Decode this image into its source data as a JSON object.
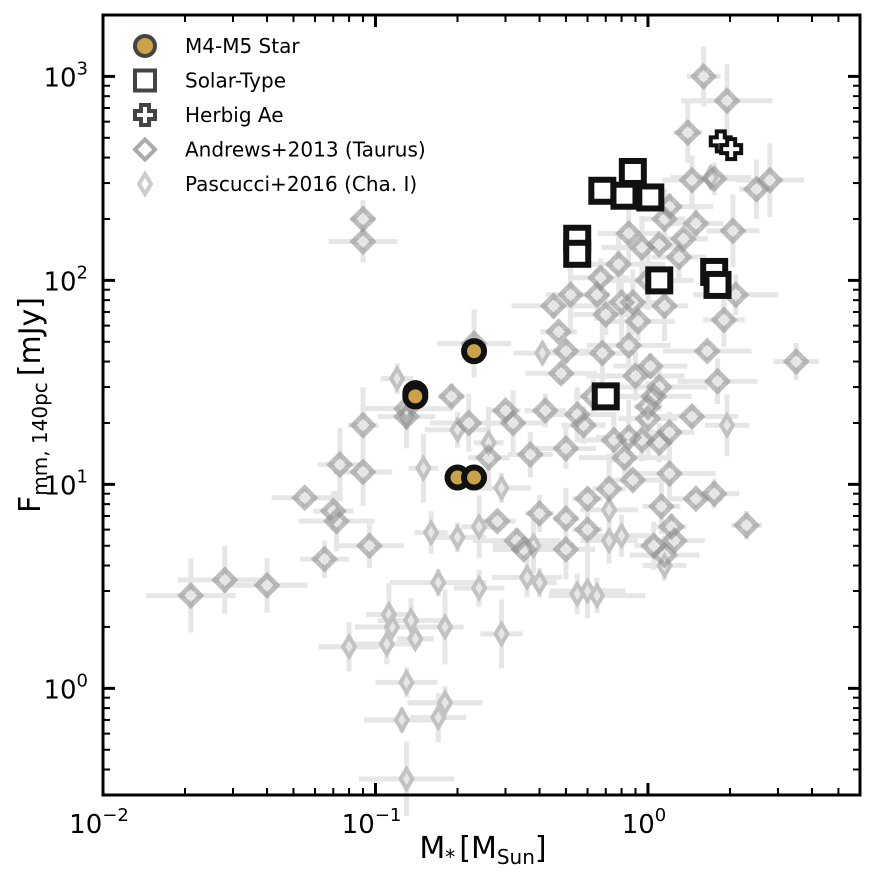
{
  "chart_data": {
    "type": "scatter",
    "xlabel": {
      "base": "M",
      "sub1": "*",
      "unit": "M",
      "unit_sub": "Sun"
    },
    "ylabel": {
      "base": "F",
      "sub": "mm, 140pc",
      "unit": "[mJy]"
    },
    "x_scale": "log",
    "y_scale": "log",
    "xlim": [
      0.01,
      6
    ],
    "ylim": [
      0.3,
      2000
    ],
    "x_ticks": [
      {
        "value": 0.01,
        "mantissa": "10",
        "exp": "−2"
      },
      {
        "value": 0.1,
        "mantissa": "10",
        "exp": "−1"
      },
      {
        "value": 1,
        "mantissa": "10",
        "exp": "0"
      }
    ],
    "y_ticks": [
      {
        "value": 1,
        "mantissa": "10",
        "exp": "0"
      },
      {
        "value": 10,
        "mantissa": "10",
        "exp": "1"
      },
      {
        "value": 100,
        "mantissa": "10",
        "exp": "2"
      },
      {
        "value": 1000,
        "mantissa": "10",
        "exp": "3"
      }
    ],
    "grid": false,
    "legend_position": "top-left",
    "series": [
      {
        "name": "M4-M5 Star",
        "marker": "circle",
        "color": "#c9a24a",
        "edge": "#111111",
        "points": [
          [
            0.14,
            28
          ],
          [
            0.14,
            27
          ],
          [
            0.23,
            45
          ],
          [
            0.2,
            10.8
          ],
          [
            0.23,
            10.8
          ]
        ]
      },
      {
        "name": "Solar-Type",
        "marker": "square",
        "color": "#111111",
        "points": [
          [
            0.68,
            275
          ],
          [
            0.82,
            260
          ],
          [
            0.88,
            340
          ],
          [
            1.02,
            255
          ],
          [
            0.55,
            160
          ],
          [
            0.55,
            135
          ],
          [
            1.1,
            100
          ],
          [
            1.75,
            110
          ],
          [
            1.8,
            95
          ],
          [
            0.7,
            27
          ]
        ]
      },
      {
        "name": "Herbig Ae",
        "marker": "cross",
        "color": "#111111",
        "points": [
          [
            1.85,
            480
          ],
          [
            2.02,
            440
          ]
        ]
      },
      {
        "name": "Andrews+2013 (Taurus)",
        "marker": "diamond",
        "color": "#888888",
        "points": [
          [
            0.021,
            2.85
          ],
          [
            0.028,
            3.4
          ],
          [
            0.04,
            3.2
          ],
          [
            0.055,
            8.6
          ],
          [
            0.065,
            4.3
          ],
          [
            0.07,
            7.4
          ],
          [
            0.072,
            6.6
          ],
          [
            0.074,
            12.5
          ],
          [
            0.09,
            200
          ],
          [
            0.09,
            155
          ],
          [
            0.09,
            19.5
          ],
          [
            0.09,
            11.5
          ],
          [
            0.095,
            5.0
          ],
          [
            0.13,
            21.5
          ],
          [
            0.13,
            23.5
          ],
          [
            0.19,
            27
          ],
          [
            0.22,
            20
          ],
          [
            0.23,
            49
          ],
          [
            0.26,
            13.5
          ],
          [
            0.28,
            6.6
          ],
          [
            0.3,
            23
          ],
          [
            0.32,
            20
          ],
          [
            0.33,
            5.3
          ],
          [
            0.35,
            4.8
          ],
          [
            0.37,
            14
          ],
          [
            0.4,
            7.2
          ],
          [
            0.42,
            23
          ],
          [
            0.45,
            75
          ],
          [
            0.47,
            56
          ],
          [
            0.48,
            35
          ],
          [
            0.5,
            45
          ],
          [
            0.5,
            15
          ],
          [
            0.5,
            6.8
          ],
          [
            0.5,
            4.8
          ],
          [
            0.52,
            85
          ],
          [
            0.55,
            22
          ],
          [
            0.58,
            19.5
          ],
          [
            0.6,
            6
          ],
          [
            0.6,
            8.5
          ],
          [
            0.63,
            27
          ],
          [
            0.65,
            85
          ],
          [
            0.67,
            103
          ],
          [
            0.68,
            44
          ],
          [
            0.7,
            68
          ],
          [
            0.72,
            9.5
          ],
          [
            0.75,
            16.5
          ],
          [
            0.78,
            120
          ],
          [
            0.8,
            78
          ],
          [
            0.82,
            13.5
          ],
          [
            0.85,
            170
          ],
          [
            0.85,
            48
          ],
          [
            0.85,
            17
          ],
          [
            0.88,
            78
          ],
          [
            0.88,
            10.5
          ],
          [
            0.9,
            34
          ],
          [
            0.92,
            63
          ],
          [
            0.95,
            145
          ],
          [
            0.95,
            16.5
          ],
          [
            1.0,
            100
          ],
          [
            1.0,
            24
          ],
          [
            1.0,
            21
          ],
          [
            1.02,
            38
          ],
          [
            1.05,
            27
          ],
          [
            1.05,
            5
          ],
          [
            1.1,
            150
          ],
          [
            1.1,
            30
          ],
          [
            1.1,
            16
          ],
          [
            1.12,
            7.8
          ],
          [
            1.15,
            200
          ],
          [
            1.15,
            75
          ],
          [
            1.15,
            4.5
          ],
          [
            1.2,
            230
          ],
          [
            1.2,
            18
          ],
          [
            1.2,
            11.3
          ],
          [
            1.22,
            6.2
          ],
          [
            1.25,
            5.3
          ],
          [
            1.3,
            130
          ],
          [
            1.35,
            160
          ],
          [
            1.4,
            530
          ],
          [
            1.45,
            310
          ],
          [
            1.45,
            21.5
          ],
          [
            1.5,
            190
          ],
          [
            1.5,
            8.5
          ],
          [
            1.6,
            1000
          ],
          [
            1.65,
            45
          ],
          [
            1.75,
            315
          ],
          [
            1.75,
            9
          ],
          [
            1.8,
            32
          ],
          [
            1.9,
            64
          ],
          [
            1.95,
            760
          ],
          [
            2.05,
            175
          ],
          [
            2.1,
            85
          ],
          [
            2.3,
            6.3
          ],
          [
            2.5,
            280
          ],
          [
            2.8,
            310
          ],
          [
            3.5,
            40
          ]
        ]
      },
      {
        "name": "Pascucci+2016 (Cha. I)",
        "marker": "thin-diamond",
        "color": "#c2c2c2",
        "points": [
          [
            0.08,
            1.6
          ],
          [
            0.12,
            33
          ],
          [
            0.13,
            21.5
          ],
          [
            0.15,
            12
          ],
          [
            0.11,
            1.65
          ],
          [
            0.112,
            2.3
          ],
          [
            0.115,
            2.0
          ],
          [
            0.13,
            1.07
          ],
          [
            0.125,
            0.7
          ],
          [
            0.135,
            2.15
          ],
          [
            0.14,
            1.75
          ],
          [
            0.13,
            0.36
          ],
          [
            0.16,
            5.8
          ],
          [
            0.17,
            3.3
          ],
          [
            0.17,
            0.72
          ],
          [
            0.18,
            0.85
          ],
          [
            0.18,
            2.0
          ],
          [
            0.2,
            5.5
          ],
          [
            0.2,
            18.5
          ],
          [
            0.24,
            6.2
          ],
          [
            0.24,
            3.1
          ],
          [
            0.26,
            16
          ],
          [
            0.29,
            1.85
          ],
          [
            0.29,
            9.6
          ],
          [
            0.36,
            3.5
          ],
          [
            0.38,
            5.0
          ],
          [
            0.4,
            3.3
          ],
          [
            0.41,
            44
          ],
          [
            0.55,
            2.9
          ],
          [
            0.6,
            3.0
          ],
          [
            0.65,
            2.85
          ],
          [
            0.72,
            5.3
          ],
          [
            0.72,
            7.5
          ],
          [
            0.8,
            5.6
          ],
          [
            1.15,
            4.0
          ],
          [
            1.7,
            320
          ],
          [
            1.95,
            19.5
          ]
        ]
      }
    ]
  }
}
